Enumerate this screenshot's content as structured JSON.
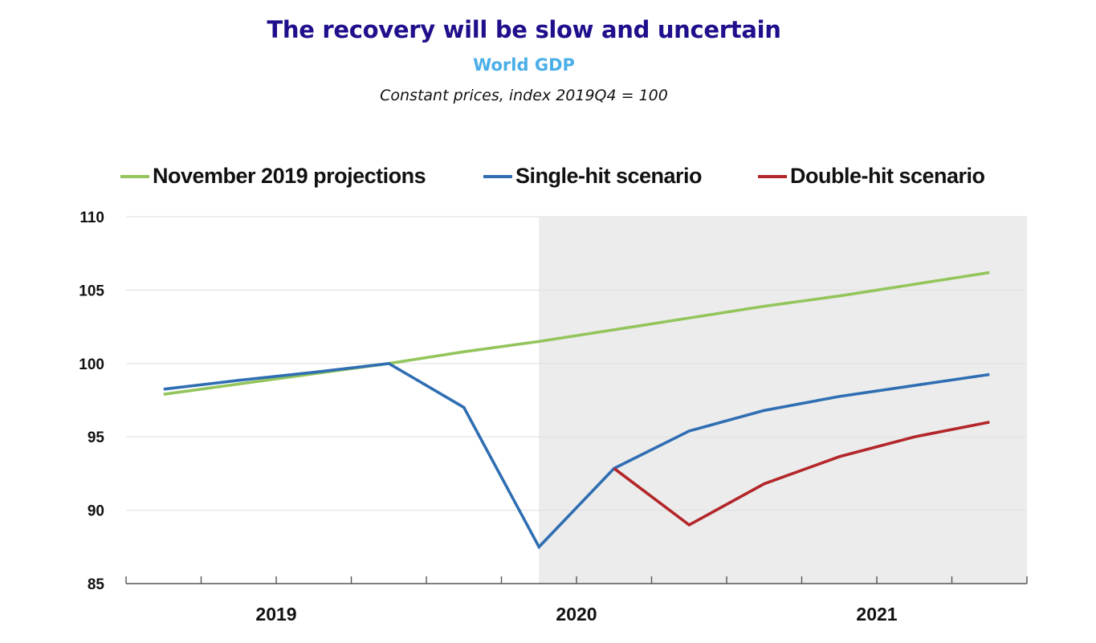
{
  "header": {
    "title": "The recovery will be slow and uncertain",
    "subtitle": "World GDP",
    "note": "Constant prices, index 2019Q4 = 100"
  },
  "colors": {
    "title": "#1e0f8c",
    "subtitle": "#4aaee8",
    "green": "#93c55c",
    "blue": "#2f6eb2",
    "red": "#b3262a",
    "shade": "#ececec",
    "grid": "#e2e2e2",
    "axis": "#555555"
  },
  "chart_data": {
    "type": "line",
    "title": "World GDP",
    "xlabel": "",
    "ylabel": "Constant prices, index 2019Q4 = 100",
    "ylim": [
      85,
      110
    ],
    "yticks": [
      85,
      90,
      95,
      100,
      105,
      110
    ],
    "grid": true,
    "legend_position": "top",
    "x": [
      "2019Q1",
      "2019Q2",
      "2019Q3",
      "2019Q4",
      "2020Q1",
      "2020Q2",
      "2020Q3",
      "2020Q4",
      "2021Q1",
      "2021Q2",
      "2021Q3",
      "2021Q4"
    ],
    "year_labels": [
      {
        "label": "2019",
        "center_index": 1.5
      },
      {
        "label": "2020",
        "center_index": 5.5
      },
      {
        "label": "2021",
        "center_index": 9.5
      }
    ],
    "shaded_from_index": 5,
    "series": [
      {
        "name": "November 2019 projections",
        "color_key": "green",
        "values": [
          97.9,
          98.6,
          99.3,
          100.0,
          100.8,
          101.5,
          102.3,
          103.1,
          103.9,
          104.6,
          105.4,
          106.2
        ]
      },
      {
        "name": "Single-hit scenario",
        "color_key": "blue",
        "values": [
          98.25,
          98.85,
          99.4,
          100.0,
          97.0,
          87.5,
          92.85,
          95.4,
          96.8,
          97.75,
          98.5,
          99.25
        ]
      },
      {
        "name": "Double-hit scenario",
        "color_key": "red",
        "values": [
          null,
          null,
          null,
          null,
          null,
          null,
          92.85,
          89.0,
          91.8,
          93.65,
          95.0,
          96.0
        ]
      }
    ]
  }
}
